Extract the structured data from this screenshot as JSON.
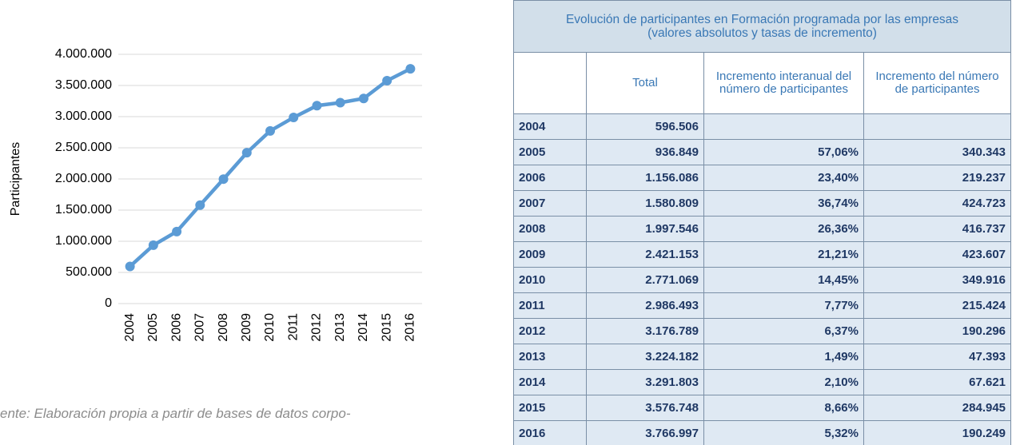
{
  "chart_data": {
    "type": "line",
    "y_label": "Participantes",
    "categories": [
      "2004",
      "2005",
      "2006",
      "2007",
      "2008",
      "2009",
      "2010",
      "2011",
      "2012",
      "2013",
      "2014",
      "2015",
      "2016"
    ],
    "values": [
      596506,
      936849,
      1156086,
      1580809,
      1997546,
      2421153,
      2771069,
      2986493,
      3176789,
      3224182,
      3291803,
      3576748,
      3766997
    ],
    "color": "#5b9bd5",
    "ylim": [
      0,
      4000000
    ],
    "yticks": [
      0,
      {
        "value": 500000,
        "label": "500.000"
      },
      {
        "value": 1000000,
        "label": "1.000.000"
      },
      {
        "value": 1500000,
        "label": "1.500.000"
      },
      {
        "value": 2000000,
        "label": "2.000.000"
      },
      {
        "value": 2500000,
        "label": "2.500.000"
      },
      {
        "value": 3000000,
        "label": "3.000.000"
      },
      {
        "value": 3500000,
        "label": "3.500.000"
      },
      {
        "value": 4000000,
        "label": "4.000.000"
      }
    ],
    "grid": true
  },
  "source": "ente: Elaboración propia a partir de bases de datos corpo-",
  "table": {
    "title": [
      "Evolución de participantes en Formación programada por las empresas",
      "(valores absolutos y tasas de incremento)"
    ],
    "headers": [
      "Total",
      "Incremento interanual del número de participantes",
      "Incremento del número de participantes"
    ],
    "rows": [
      [
        "2004",
        "596.506"
      ],
      [
        "2005",
        "936.849",
        "57,06%",
        "340.343"
      ],
      [
        "2006",
        "1.156.086",
        "23,40%",
        "219.237"
      ],
      [
        "2007",
        "1.580.809",
        "36,74%",
        "424.723"
      ],
      [
        "2008",
        "1.997.546",
        "26,36%",
        "416.737"
      ],
      [
        "2009",
        "2.421.153",
        "21,21%",
        "423.607"
      ],
      [
        "2010",
        "2.771.069",
        "14,45%",
        "349.916"
      ],
      [
        "2011",
        "2.986.493",
        "7,77%",
        "215.424"
      ],
      [
        "2012",
        "3.176.789",
        "6,37%",
        "190.296"
      ],
      [
        "2013",
        "3.224.182",
        "1,49%",
        "47.393"
      ],
      [
        "2014",
        "3.291.803",
        "2,10%",
        "67.621"
      ],
      [
        "2015",
        "3.576.748",
        "8,66%",
        "284.945"
      ],
      [
        "2016",
        "3.766.997",
        "5,32%",
        "190.249"
      ]
    ]
  }
}
